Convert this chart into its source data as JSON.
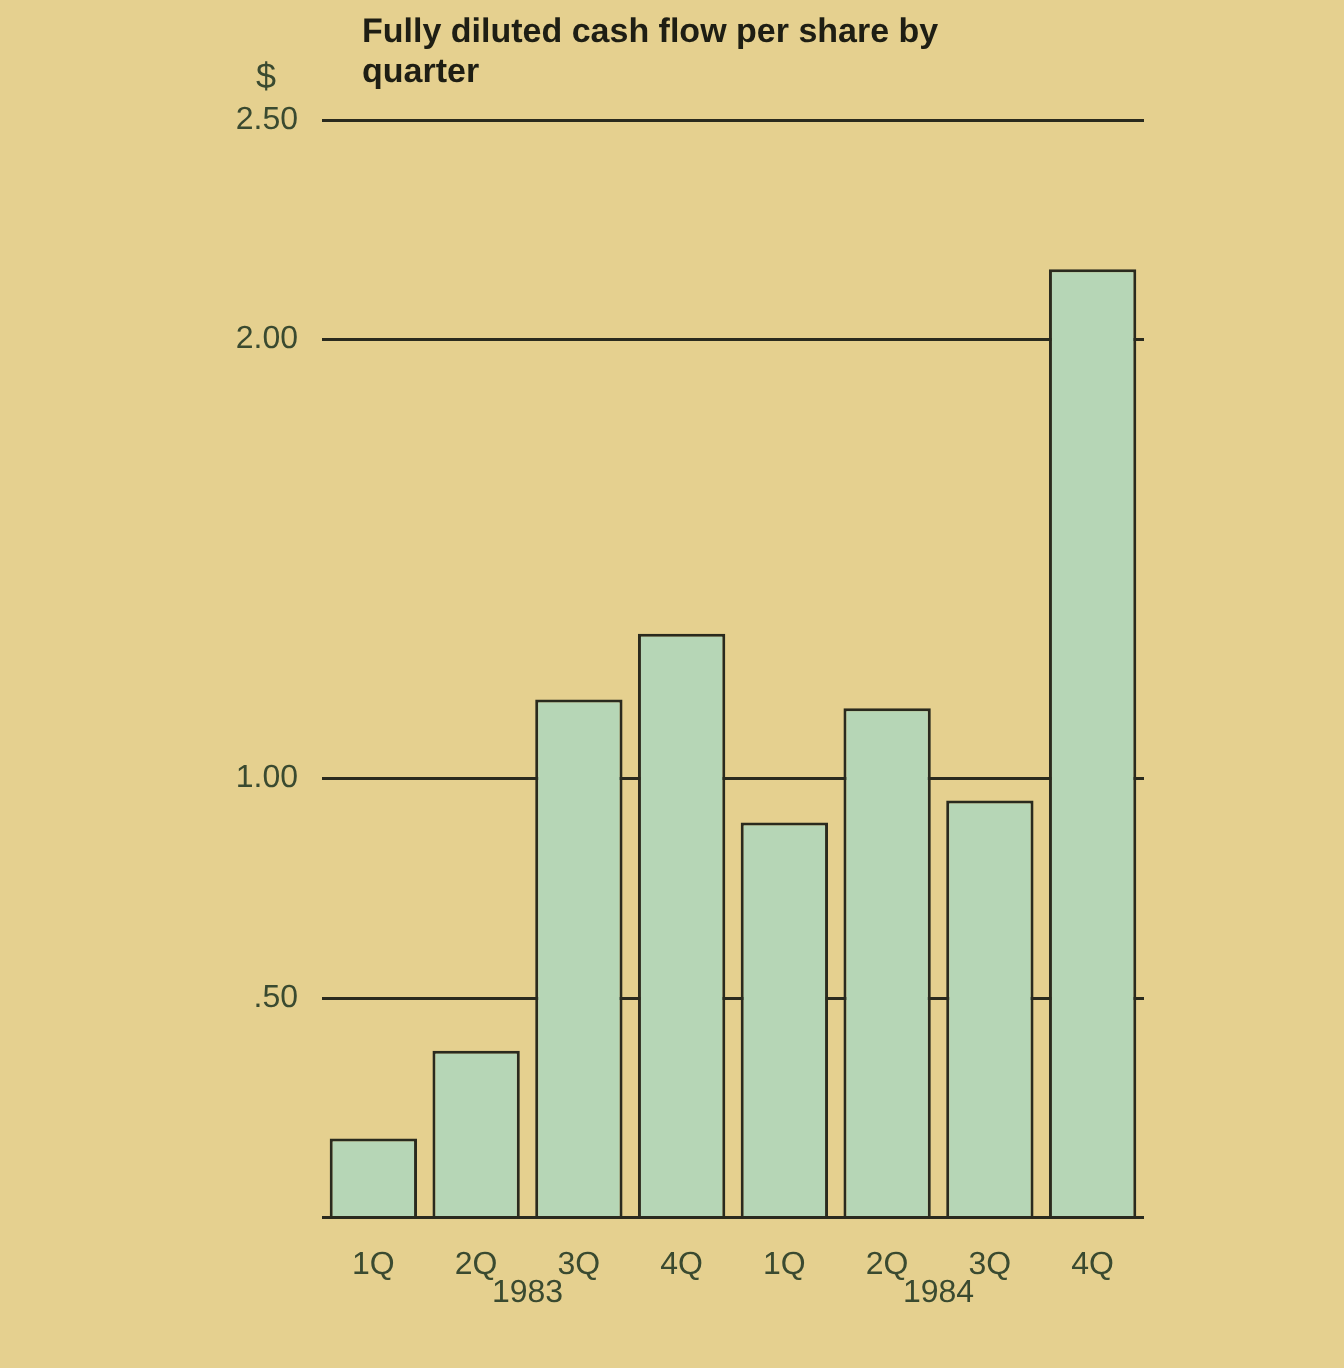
{
  "chart_data": {
    "type": "bar",
    "title": "Fully diluted cash flow per share by quarter",
    "ylabel": "$",
    "categories": [
      "1Q",
      "2Q",
      "3Q",
      "4Q",
      "1Q",
      "2Q",
      "3Q",
      "4Q"
    ],
    "series": [
      {
        "color": "#b6d6b6",
        "values": [
          0.18,
          0.38,
          1.18,
          1.33,
          0.9,
          1.16,
          0.95,
          2.16
        ]
      }
    ],
    "ylim": [
      0,
      2.5
    ],
    "yticks": [
      {
        "value": 0,
        "label": null
      },
      {
        "value": 0.5,
        "label": ".50"
      },
      {
        "value": 1,
        "label": "1.00"
      },
      {
        "value": 2,
        "label": "2.00"
      },
      {
        "value": 2.5,
        "label": "2.50"
      }
    ],
    "grid": "y",
    "annotations": [
      "1983",
      "1984"
    ]
  }
}
